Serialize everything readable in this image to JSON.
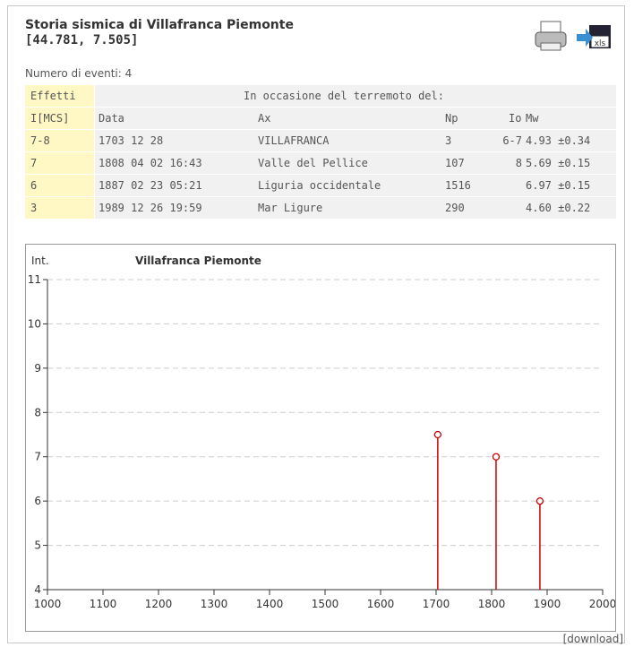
{
  "header": {
    "title": "Storia sismica di Villafranca Piemonte",
    "coords": "[44.781, 7.505]",
    "events": "Numero di eventi: 4",
    "xls_icon": "xls"
  },
  "table": {
    "header": [
      "Effetti",
      "In occasione del terremoto del:"
    ],
    "columns": [
      "I[MCS]",
      "Data",
      "Ax",
      "Np",
      "Io",
      "Mw"
    ],
    "rows": [
      [
        "7-8",
        "1703 12 28",
        "VILLAFRANCA",
        "3",
        "6-7",
        "4.93 ±0.34"
      ],
      [
        "7",
        "1808 04 02 16:43",
        "Valle del Pellice",
        "107",
        "8",
        "5.69 ±0.15"
      ],
      [
        "6",
        "1887 02 23 05:21",
        "Liguria occidentale",
        "1516",
        "",
        "6.97 ±0.15"
      ],
      [
        "3",
        "1989 12 26 19:59",
        "Mar Ligure",
        "290",
        "",
        "4.60 ±0.22"
      ]
    ]
  },
  "chart_data": {
    "type": "stem",
    "title": "Villafranca Piemonte",
    "ylabel": "Int.",
    "x": [
      1703,
      1808,
      1887
    ],
    "values": [
      7.5,
      7,
      6
    ],
    "color": "#cc0000",
    "xlim": [
      1000,
      2000
    ],
    "xticks": [
      1000,
      1100,
      1200,
      1300,
      1400,
      1500,
      1600,
      1700,
      1800,
      1900,
      2000
    ],
    "ylim": [
      4,
      11
    ],
    "yticks": [
      4,
      5,
      6,
      7,
      8,
      9,
      10,
      11
    ],
    "grid": true
  },
  "download": "[download]"
}
